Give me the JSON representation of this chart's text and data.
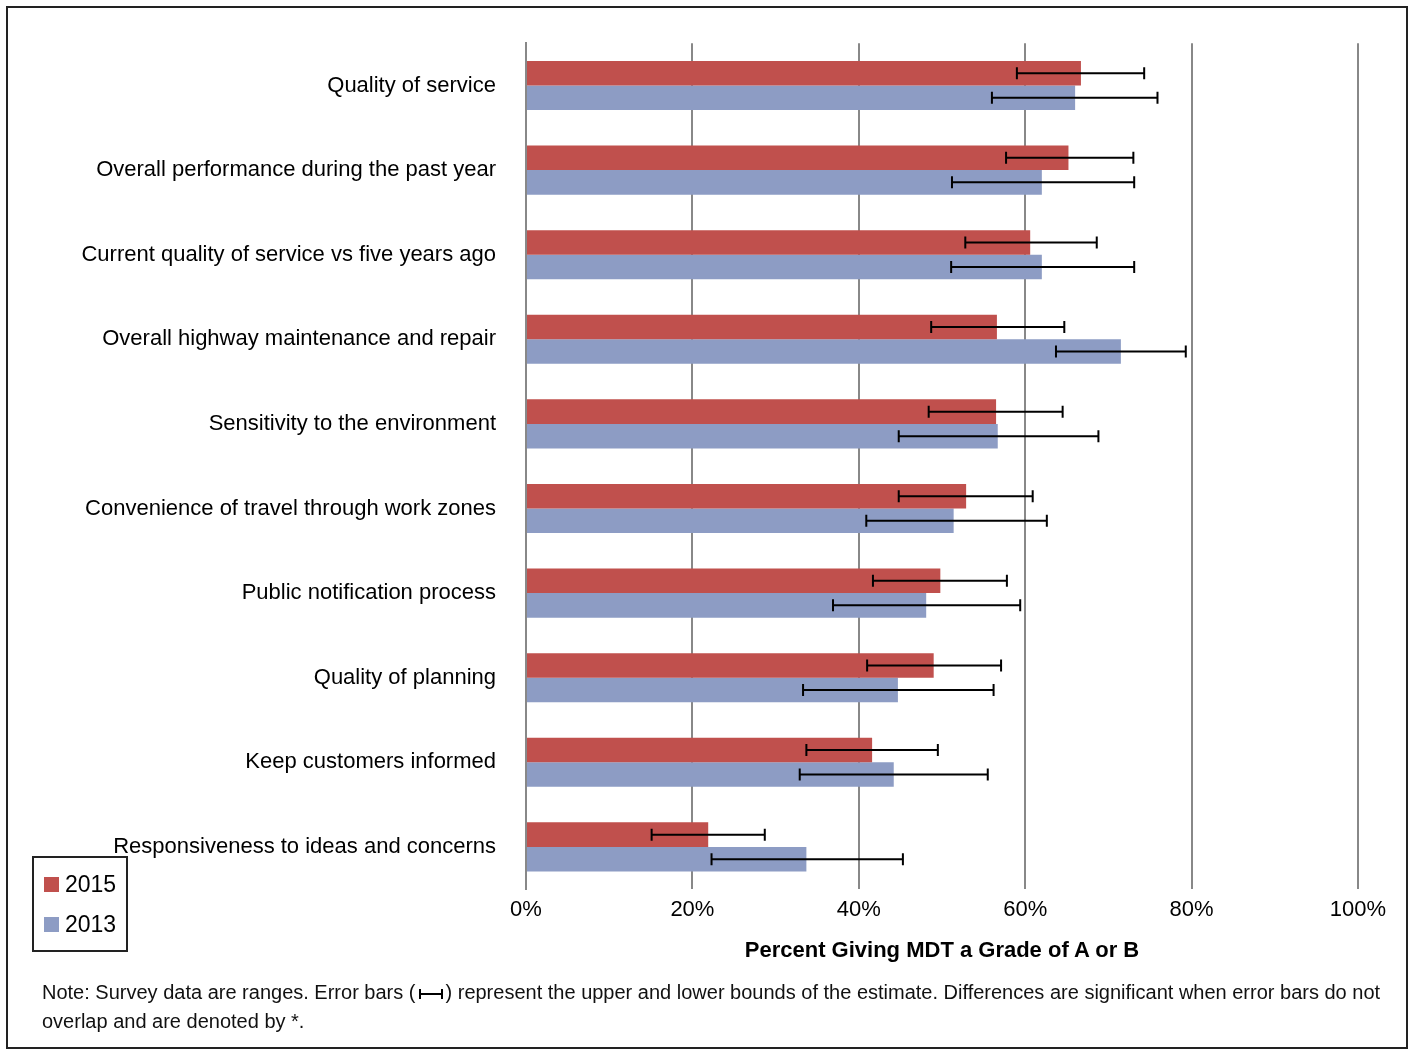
{
  "chart_data": {
    "type": "bar",
    "orientation": "horizontal",
    "xlabel": "Percent Giving MDT a Grade of A or B",
    "categories": [
      "Quality of service",
      "Overall performance during the past year",
      "Current quality of service vs five years ago",
      "Overall highway maintenance and repair",
      "Sensitivity to the environment",
      "Convenience of travel through work zones",
      "Public notification process",
      "Quality of planning",
      "Keep customers informed",
      "Responsiveness to ideas and concerns"
    ],
    "series": [
      {
        "name": "2015",
        "color": "#c0504d",
        "values": [
          66.7,
          65.2,
          60.6,
          56.6,
          56.5,
          52.9,
          49.8,
          49.0,
          41.6,
          21.9
        ],
        "errors": [
          [
            59,
            74.3
          ],
          [
            57.7,
            73
          ],
          [
            52.8,
            68.6
          ],
          [
            48.7,
            64.7
          ],
          [
            48.4,
            64.5
          ],
          [
            44.8,
            60.9
          ],
          [
            41.7,
            57.8
          ],
          [
            41,
            57.1
          ],
          [
            33.7,
            49.5
          ],
          [
            15.1,
            28.7
          ]
        ]
      },
      {
        "name": "2013",
        "color": "#8d9cc4",
        "values": [
          66,
          62,
          62,
          71.5,
          56.7,
          51.4,
          48.1,
          44.7,
          44.2,
          33.7
        ],
        "errors": [
          [
            56,
            75.9
          ],
          [
            51.2,
            73.1
          ],
          [
            51.1,
            73.1
          ],
          [
            63.7,
            79.3
          ],
          [
            44.8,
            68.8
          ],
          [
            40.9,
            62.6
          ],
          [
            36.9,
            59.4
          ],
          [
            33.3,
            56.2
          ],
          [
            32.9,
            55.5
          ],
          [
            22.3,
            45.3
          ]
        ]
      }
    ],
    "xlim": [
      0,
      100
    ],
    "xticks": [
      {
        "value": 0,
        "label": "0%"
      },
      {
        "value": 20,
        "label": "20%"
      },
      {
        "value": 40,
        "label": "40%"
      },
      {
        "value": 60,
        "label": "60%"
      },
      {
        "value": 80,
        "label": "80%"
      },
      {
        "value": 100,
        "label": "100%"
      }
    ],
    "grid": "x",
    "legend": "bottom left",
    "annotations": [
      "Note:  Survey data are ranges.  Error bars (",
      ") represent the upper and lower bounds of the estimate. Differences are significant when error bars do not overlap and are denoted by *."
    ]
  }
}
